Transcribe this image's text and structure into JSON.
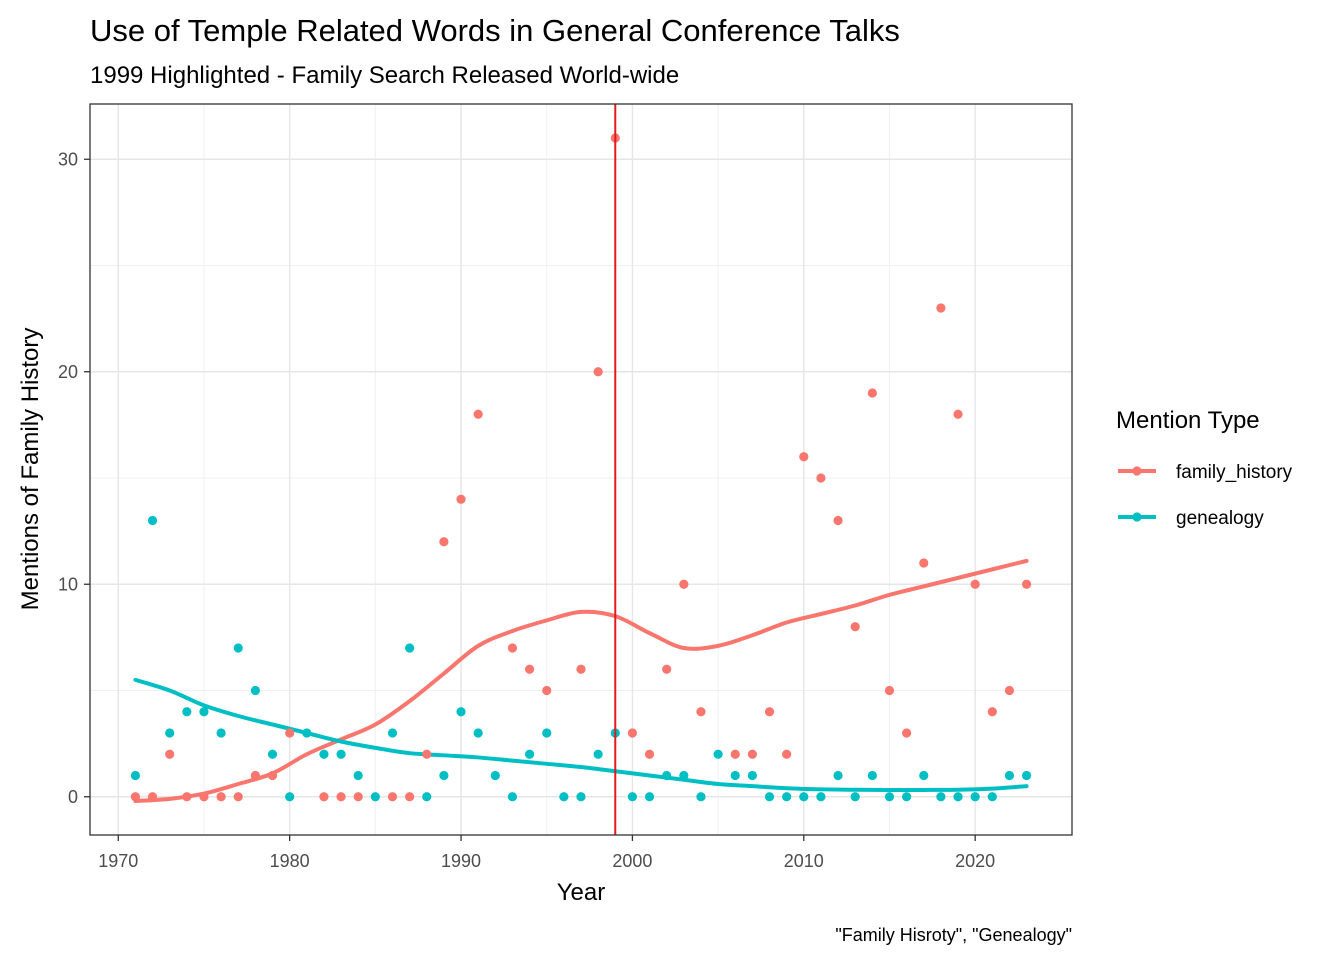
{
  "chart_data": {
    "type": "scatter",
    "title": "Use of Temple Related Words in General Conference Talks",
    "subtitle": "1999 Highlighted - Family Search Released World-wide",
    "xlabel": "Year",
    "ylabel": "Mentions of Family History",
    "caption": "\"Family Hisroty\", \"Genealogy\"",
    "xlim": [
      1968.35,
      2025.65
    ],
    "ylim": [
      -1.8,
      32.6
    ],
    "x_ticks": [
      1970,
      1980,
      1990,
      2000,
      2010,
      2020
    ],
    "y_ticks": [
      0,
      10,
      20,
      30
    ],
    "vline": {
      "x": 1999,
      "color": "#e31a1c"
    },
    "grid": true,
    "legend": {
      "title": "Mention Type",
      "position": "right"
    },
    "series": [
      {
        "name": "family_history",
        "color": "#f8766d",
        "points": [
          [
            1971,
            0
          ],
          [
            1972,
            0
          ],
          [
            1973,
            2
          ],
          [
            1974,
            0
          ],
          [
            1975,
            0
          ],
          [
            1976,
            0
          ],
          [
            1977,
            0
          ],
          [
            1978,
            1
          ],
          [
            1979,
            1
          ],
          [
            1980,
            3
          ],
          [
            1982,
            0
          ],
          [
            1983,
            0
          ],
          [
            1984,
            0
          ],
          [
            1986,
            0
          ],
          [
            1987,
            0
          ],
          [
            1988,
            2
          ],
          [
            1989,
            12
          ],
          [
            1990,
            14
          ],
          [
            1991,
            18
          ],
          [
            1993,
            7
          ],
          [
            1994,
            6
          ],
          [
            1995,
            5
          ],
          [
            1997,
            6
          ],
          [
            1998,
            20
          ],
          [
            1999,
            31
          ],
          [
            2000,
            3
          ],
          [
            2001,
            2
          ],
          [
            2002,
            6
          ],
          [
            2003,
            10
          ],
          [
            2004,
            4
          ],
          [
            2006,
            2
          ],
          [
            2007,
            2
          ],
          [
            2008,
            4
          ],
          [
            2009,
            2
          ],
          [
            2010,
            16
          ],
          [
            2011,
            15
          ],
          [
            2012,
            13
          ],
          [
            2013,
            8
          ],
          [
            2014,
            19
          ],
          [
            2015,
            5
          ],
          [
            2016,
            3
          ],
          [
            2017,
            11
          ],
          [
            2018,
            23
          ],
          [
            2019,
            18
          ],
          [
            2020,
            10
          ],
          [
            2021,
            4
          ],
          [
            2022,
            5
          ],
          [
            2023,
            10
          ]
        ],
        "smooth": [
          [
            1971,
            -0.2
          ],
          [
            1973,
            -0.1
          ],
          [
            1975,
            0.15
          ],
          [
            1977,
            0.6
          ],
          [
            1979,
            1.1
          ],
          [
            1981,
            2.0
          ],
          [
            1983,
            2.7
          ],
          [
            1985,
            3.4
          ],
          [
            1987,
            4.5
          ],
          [
            1989,
            5.8
          ],
          [
            1991,
            7.1
          ],
          [
            1993,
            7.8
          ],
          [
            1995,
            8.3
          ],
          [
            1997,
            8.7
          ],
          [
            1999,
            8.5
          ],
          [
            2001,
            7.7
          ],
          [
            2003,
            7.0
          ],
          [
            2005,
            7.1
          ],
          [
            2007,
            7.6
          ],
          [
            2009,
            8.2
          ],
          [
            2011,
            8.6
          ],
          [
            2013,
            9.0
          ],
          [
            2015,
            9.5
          ],
          [
            2017,
            9.9
          ],
          [
            2019,
            10.3
          ],
          [
            2021,
            10.7
          ],
          [
            2023,
            11.1
          ]
        ]
      },
      {
        "name": "genealogy",
        "color": "#00bfc4",
        "points": [
          [
            1971,
            1
          ],
          [
            1972,
            13
          ],
          [
            1973,
            3
          ],
          [
            1974,
            4
          ],
          [
            1975,
            4
          ],
          [
            1976,
            3
          ],
          [
            1977,
            7
          ],
          [
            1978,
            5
          ],
          [
            1979,
            2
          ],
          [
            1980,
            0
          ],
          [
            1981,
            3
          ],
          [
            1982,
            2
          ],
          [
            1983,
            2
          ],
          [
            1984,
            1
          ],
          [
            1985,
            0
          ],
          [
            1986,
            3
          ],
          [
            1987,
            7
          ],
          [
            1988,
            0
          ],
          [
            1989,
            1
          ],
          [
            1990,
            4
          ],
          [
            1991,
            3
          ],
          [
            1992,
            1
          ],
          [
            1993,
            0
          ],
          [
            1994,
            2
          ],
          [
            1995,
            3
          ],
          [
            1996,
            0
          ],
          [
            1997,
            0
          ],
          [
            1998,
            2
          ],
          [
            1999,
            3
          ],
          [
            2000,
            0
          ],
          [
            2001,
            0
          ],
          [
            2002,
            1
          ],
          [
            2003,
            1
          ],
          [
            2004,
            0
          ],
          [
            2005,
            2
          ],
          [
            2006,
            1
          ],
          [
            2007,
            1
          ],
          [
            2008,
            0
          ],
          [
            2009,
            0
          ],
          [
            2010,
            0
          ],
          [
            2011,
            0
          ],
          [
            2012,
            1
          ],
          [
            2013,
            0
          ],
          [
            2014,
            1
          ],
          [
            2015,
            0
          ],
          [
            2016,
            0
          ],
          [
            2017,
            1
          ],
          [
            2018,
            0
          ],
          [
            2019,
            0
          ],
          [
            2020,
            0
          ],
          [
            2021,
            0
          ],
          [
            2022,
            1
          ],
          [
            2023,
            1
          ]
        ],
        "smooth": [
          [
            1971,
            5.5
          ],
          [
            1973,
            5.0
          ],
          [
            1975,
            4.3
          ],
          [
            1977,
            3.8
          ],
          [
            1979,
            3.4
          ],
          [
            1981,
            3.0
          ],
          [
            1983,
            2.6
          ],
          [
            1985,
            2.3
          ],
          [
            1987,
            2.05
          ],
          [
            1989,
            1.95
          ],
          [
            1991,
            1.85
          ],
          [
            1993,
            1.7
          ],
          [
            1995,
            1.55
          ],
          [
            1997,
            1.4
          ],
          [
            1999,
            1.2
          ],
          [
            2001,
            1.0
          ],
          [
            2003,
            0.8
          ],
          [
            2005,
            0.6
          ],
          [
            2007,
            0.5
          ],
          [
            2009,
            0.4
          ],
          [
            2011,
            0.35
          ],
          [
            2013,
            0.33
          ],
          [
            2015,
            0.32
          ],
          [
            2017,
            0.32
          ],
          [
            2019,
            0.33
          ],
          [
            2021,
            0.38
          ],
          [
            2023,
            0.5
          ]
        ]
      }
    ]
  }
}
